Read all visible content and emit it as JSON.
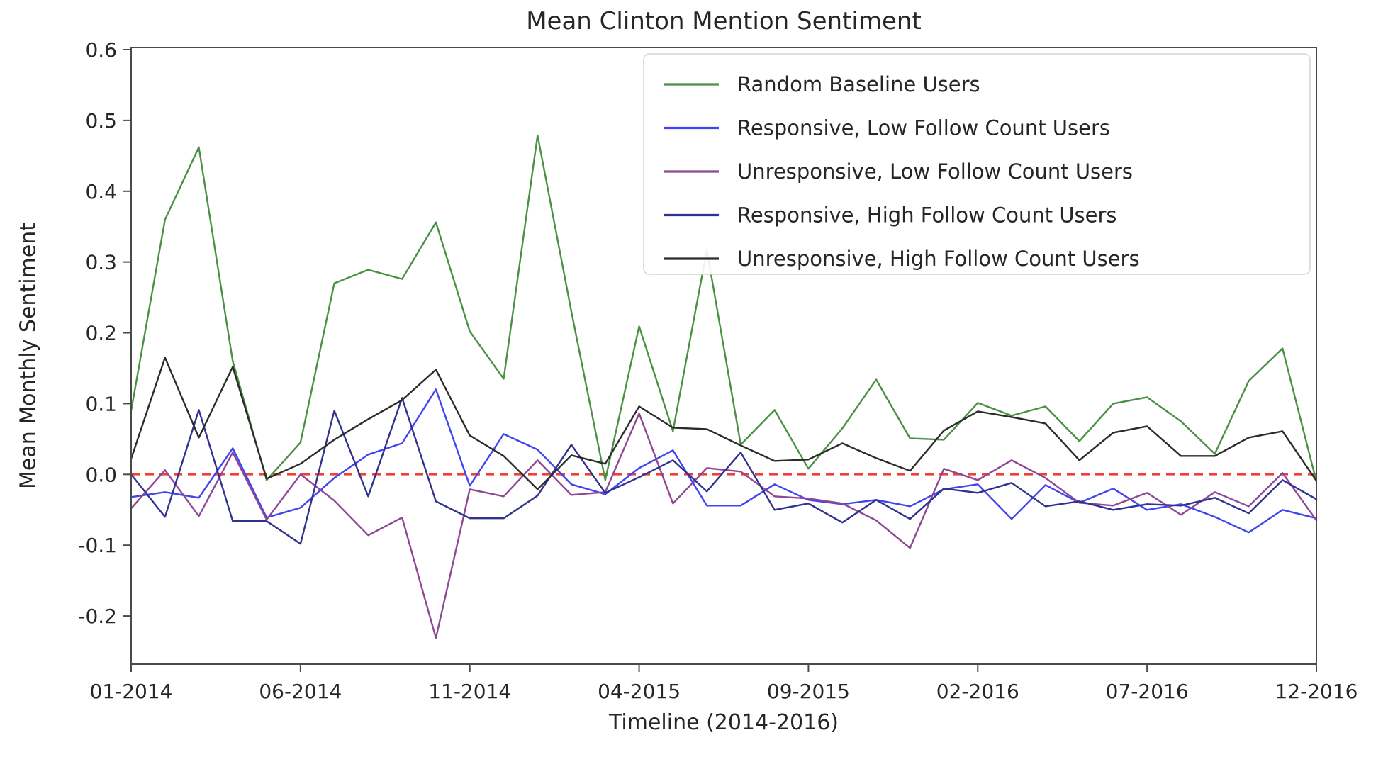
{
  "figure": {
    "title": "Mean Clinton Mention Sentiment",
    "xlabel": "Timeline (2014-2016)",
    "ylabel": "Mean Monthly Sentiment"
  },
  "colors": {
    "frame": "#4a4a4a",
    "tick_text": "#262626",
    "legend_border": "#d4d4d4",
    "legend_bg": "#ffffff",
    "background": "#ffffff"
  },
  "chart_data": {
    "type": "line",
    "title": "Mean Clinton Mention Sentiment",
    "xlabel": "Timeline (2014-2016)",
    "ylabel": "Mean Monthly Sentiment",
    "grid": false,
    "legend_position": "upper right",
    "xlim": [
      0,
      35
    ],
    "ylim": [
      -0.268,
      0.603
    ],
    "y_ticks": [
      -0.2,
      -0.1,
      0.0,
      0.1,
      0.2,
      0.3,
      0.4,
      0.5,
      0.6
    ],
    "y_tick_labels": [
      "-0.2",
      "-0.1",
      "0.0",
      "0.1",
      "0.2",
      "0.3",
      "0.4",
      "0.5",
      "0.6"
    ],
    "x_tick_positions": [
      0,
      5,
      10,
      15,
      20,
      25,
      30,
      35
    ],
    "x_tick_labels": [
      "01-2014",
      "06-2014",
      "11-2014",
      "04-2015",
      "09-2015",
      "02-2016",
      "07-2016",
      "12-2016"
    ],
    "x": [
      "01-2014",
      "02-2014",
      "03-2014",
      "04-2014",
      "05-2014",
      "06-2014",
      "07-2014",
      "08-2014",
      "09-2014",
      "10-2014",
      "11-2014",
      "12-2014",
      "01-2015",
      "02-2015",
      "03-2015",
      "04-2015",
      "05-2015",
      "06-2015",
      "07-2015",
      "08-2015",
      "09-2015",
      "10-2015",
      "11-2015",
      "12-2015",
      "01-2016",
      "02-2016",
      "03-2016",
      "04-2016",
      "05-2016",
      "06-2016",
      "07-2016",
      "08-2016",
      "09-2016",
      "10-2016",
      "11-2016",
      "12-2016"
    ],
    "zero_line": {
      "y": 0.0,
      "color": "#ee4135",
      "style": "dashed"
    },
    "series": [
      {
        "name": "Random Baseline Users",
        "color": "#4a9143",
        "values": [
          0.09,
          0.36,
          0.462,
          0.16,
          -0.008,
          0.045,
          0.27,
          0.289,
          0.276,
          0.356,
          0.202,
          0.135,
          0.479,
          0.23,
          -0.008,
          0.209,
          0.061,
          0.317,
          0.042,
          0.091,
          0.008,
          0.065,
          0.134,
          0.051,
          0.049,
          0.101,
          0.083,
          0.096,
          0.047,
          0.1,
          0.109,
          0.075,
          0.029,
          0.132,
          0.178,
          -0.01
        ]
      },
      {
        "name": "Responsive, Low Follow Count Users",
        "color": "#4045ef",
        "values": [
          -0.032,
          -0.025,
          -0.033,
          0.037,
          -0.061,
          -0.047,
          -0.005,
          0.028,
          0.044,
          0.12,
          -0.016,
          0.057,
          0.035,
          -0.014,
          -0.028,
          0.009,
          0.034,
          -0.044,
          -0.044,
          -0.014,
          -0.036,
          -0.042,
          -0.036,
          -0.045,
          -0.021,
          -0.014,
          -0.063,
          -0.015,
          -0.04,
          -0.02,
          -0.05,
          -0.042,
          -0.06,
          -0.082,
          -0.05,
          -0.062
        ]
      },
      {
        "name": "Unresponsive, Low Follow Count Users",
        "color": "#8f4795",
        "values": [
          -0.048,
          0.006,
          -0.059,
          0.031,
          -0.064,
          0.0,
          -0.037,
          -0.086,
          -0.061,
          -0.231,
          -0.021,
          -0.031,
          0.02,
          -0.029,
          -0.025,
          0.086,
          -0.041,
          0.009,
          0.004,
          -0.031,
          -0.034,
          -0.041,
          -0.065,
          -0.104,
          0.008,
          -0.008,
          0.02,
          -0.005,
          -0.04,
          -0.044,
          -0.026,
          -0.057,
          -0.025,
          -0.045,
          0.002,
          -0.065
        ]
      },
      {
        "name": "Responsive, High Follow Count Users",
        "color": "#31318f",
        "values": [
          0.0,
          -0.06,
          0.091,
          -0.066,
          -0.066,
          -0.098,
          0.09,
          -0.031,
          0.108,
          -0.038,
          -0.062,
          -0.062,
          -0.03,
          0.042,
          -0.026,
          -0.004,
          0.02,
          -0.024,
          0.031,
          -0.05,
          -0.041,
          -0.068,
          -0.036,
          -0.063,
          -0.02,
          -0.026,
          -0.012,
          -0.045,
          -0.038,
          -0.05,
          -0.042,
          -0.044,
          -0.033,
          -0.055,
          -0.008,
          -0.035
        ]
      },
      {
        "name": "Unresponsive, High Follow Count Users",
        "color": "#2b2b2b",
        "values": [
          0.022,
          0.165,
          0.052,
          0.152,
          -0.006,
          0.015,
          0.049,
          0.078,
          0.105,
          0.148,
          0.055,
          0.026,
          -0.021,
          0.027,
          0.015,
          0.096,
          0.066,
          0.064,
          0.041,
          0.019,
          0.021,
          0.044,
          0.023,
          0.005,
          0.062,
          0.089,
          0.081,
          0.072,
          0.02,
          0.059,
          0.068,
          0.026,
          0.026,
          0.052,
          0.061,
          -0.009
        ]
      }
    ]
  }
}
